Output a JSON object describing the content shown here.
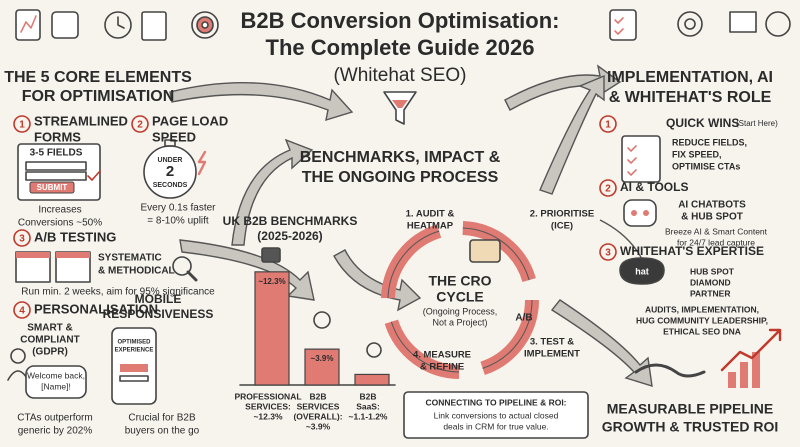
{
  "header": {
    "title": [
      "B2B Conversion Optimisation:",
      "The Complete Guide 2026"
    ],
    "subtitle": "(Whitehat SEO)"
  },
  "left": {
    "heading": [
      "THE 5 CORE ELEMENTS",
      "FOR OPTIMISATION"
    ],
    "items": [
      {
        "number": "1",
        "title": [
          "STREAMLINED",
          "FORMS"
        ],
        "graphic": [
          "3-5 FIELDS",
          "SUBMIT"
        ],
        "caption": [
          "Increases",
          "Conversions ~50%"
        ]
      },
      {
        "number": "2",
        "title": [
          "PAGE LOAD",
          "SPEED"
        ],
        "graphic": [
          "UNDER",
          "2",
          "SECONDS"
        ],
        "caption": [
          "Every 0.1s faster",
          "= 8-10% uplift"
        ]
      },
      {
        "number": "3",
        "title": [
          "A/B TESTING"
        ],
        "graphic": [
          "SYSTEMATIC",
          "& METHODICAL"
        ],
        "caption": [
          "Run min. 2 weeks, aim for 95% significance"
        ]
      },
      {
        "number": "4",
        "title": [
          "PERSONALISATION"
        ],
        "graphic": [
          "SMART &",
          "COMPLIANT",
          "(GDPR)"
        ],
        "bubble": [
          "Welcome back,",
          "[Name]!"
        ],
        "caption": [
          "CTAs outperform",
          "generic by 202%"
        ]
      },
      {
        "title": [
          "MOBILE",
          "RESPONSIVENESS"
        ],
        "graphic": [
          "OPTIMISED",
          "EXPERIENCE"
        ],
        "caption": [
          "Crucial for B2B",
          "buyers on the go"
        ]
      }
    ]
  },
  "center": {
    "heading": [
      "BENCHMARKS, IMPACT &",
      "THE ONGOING PROCESS"
    ],
    "benchmarks": {
      "title": [
        "UK B2B BENCHMARKS",
        "(2025-2026)"
      ],
      "bars": [
        {
          "value": 12.3,
          "value_label": "~12.3%",
          "label": [
            "PROFESSIONAL",
            "SERVICES:",
            "~12.3%"
          ]
        },
        {
          "value": 3.9,
          "value_label": "~3.9%",
          "label": [
            "B2B",
            "SERVICES",
            "(OVERALL):",
            "~3.9%"
          ]
        },
        {
          "value": 1.15,
          "label": [
            "B2B",
            "SaaS:",
            "~1.1-1.2%"
          ]
        }
      ]
    },
    "cycle": {
      "title": [
        "THE CRO",
        "CYCLE"
      ],
      "subtitle": [
        "(Ongoing Process,",
        "Not a Project)"
      ],
      "steps": [
        [
          "1. AUDIT &",
          "HEATMAP"
        ],
        [
          "2. PRIORITISE",
          "(ICE)"
        ],
        [
          "3. TEST &",
          "IMPLEMENT"
        ],
        [
          "4. MEASURE",
          "& REFINE"
        ]
      ],
      "tag": "A/B"
    },
    "roi": {
      "title": "CONNECTING TO PIPELINE & ROI:",
      "text": [
        "Link conversions to actual closed",
        "deals in CRM for true value."
      ]
    }
  },
  "right": {
    "heading": [
      "IMPLEMENTATION, AI",
      "& WHITEHAT'S ROLE"
    ],
    "items": [
      {
        "number": "1",
        "title": "QUICK WINS",
        "note": "(Start Here)",
        "detail": [
          "REDUCE FIELDS,",
          "FIX SPEED,",
          "OPTIMISE CTAs"
        ]
      },
      {
        "number": "2",
        "title": "AI & TOOLS",
        "detail": [
          "AI CHATBOTS",
          "& HUB SPOT"
        ],
        "caption": [
          "Breeze AI & Smart Content",
          "for 24/7 lead capture"
        ]
      },
      {
        "number": "3",
        "title": "WHITEHAT'S EXPERTISE",
        "logo": "hat",
        "detail": [
          "HUB SPOT",
          "DIAMOND",
          "PARTNER"
        ],
        "caption": [
          "AUDITS, IMPLEMENTATION,",
          "HUG COMMUNITY LEADERSHIP,",
          "ETHICAL SEO DNA"
        ]
      }
    ]
  },
  "footer": [
    "MEASURABLE PIPELINE",
    "GROWTH & TRUSTED ROI"
  ]
}
